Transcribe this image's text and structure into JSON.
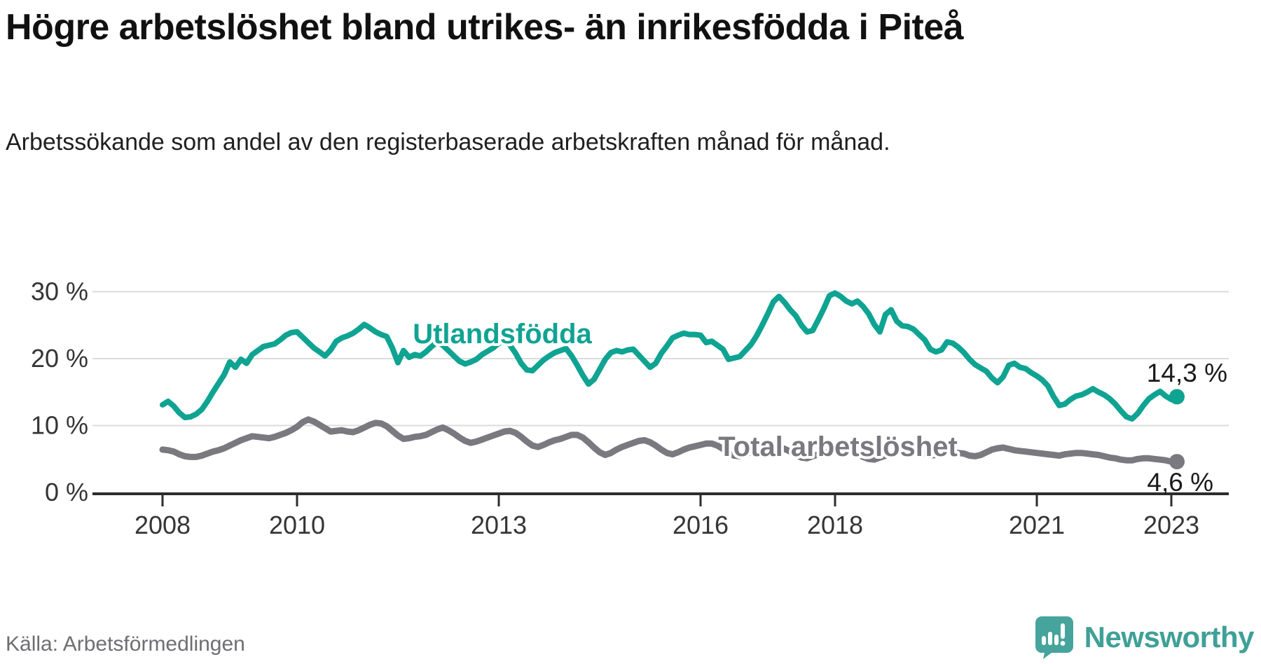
{
  "header": {
    "title": "Högre arbetslöshet bland utrikes- än inrikesfödda i Piteå",
    "subtitle": "Arbetssökande som andel av den registerbaserade arbetskraften månad för månad."
  },
  "footer": {
    "source": "Källa: Arbetsförmedlingen",
    "brand": "Newsworthy",
    "brand_color": "#3fa096",
    "logo_bubble_color": "#46a49c"
  },
  "chart_data": {
    "type": "line",
    "title": "Högre arbetslöshet bland utrikes- än inrikesfödda i Piteå",
    "x_unit": "month",
    "x_start_year": 2008,
    "x_end": "2023-02",
    "ylim": [
      0,
      31
    ],
    "grid": true,
    "legend": "inline-labels",
    "y_ticks": [
      {
        "value": 0,
        "label": "0 %"
      },
      {
        "value": 10,
        "label": "10 %"
      },
      {
        "value": 20,
        "label": "20 %"
      },
      {
        "value": 30,
        "label": "30 %"
      }
    ],
    "x_ticks": [
      {
        "year": 2008,
        "label": "2008"
      },
      {
        "year": 2010,
        "label": "2010"
      },
      {
        "year": 2013,
        "label": "2013"
      },
      {
        "year": 2016,
        "label": "2016"
      },
      {
        "year": 2018,
        "label": "2018"
      },
      {
        "year": 2021,
        "label": "2021"
      },
      {
        "year": 2023,
        "label": "2023"
      }
    ],
    "series": [
      {
        "name": "Utlandsfödda",
        "color": "#0fa392",
        "stroke_width": 8,
        "end_label": "14,3 %",
        "values": [
          13.1,
          13.6,
          12.9,
          11.9,
          11.2,
          11.3,
          11.7,
          12.4,
          13.6,
          15.0,
          16.3,
          17.6,
          19.5,
          18.7,
          19.9,
          19.3,
          20.6,
          21.2,
          21.8,
          22.0,
          22.2,
          22.8,
          23.5,
          23.9,
          24.0,
          23.2,
          22.4,
          21.6,
          21.0,
          20.4,
          21.3,
          22.6,
          23.1,
          23.4,
          23.8,
          24.4,
          25.1,
          24.6,
          24.0,
          23.6,
          23.3,
          21.6,
          19.4,
          21.2,
          20.2,
          20.6,
          20.4,
          21.0,
          21.8,
          22.5,
          22.0,
          21.2,
          20.4,
          19.6,
          19.2,
          19.5,
          19.9,
          20.6,
          21.1,
          21.6,
          22.3,
          22.8,
          22.0,
          20.8,
          19.3,
          18.3,
          18.2,
          19.0,
          19.8,
          20.4,
          20.9,
          21.2,
          21.5,
          20.4,
          19.0,
          17.5,
          16.2,
          16.9,
          18.4,
          19.9,
          20.9,
          21.2,
          21.0,
          21.3,
          21.4,
          20.5,
          19.6,
          18.7,
          19.3,
          20.8,
          21.9,
          23.1,
          23.5,
          23.8,
          23.6,
          23.6,
          23.5,
          22.4,
          22.6,
          22.0,
          21.4,
          19.9,
          20.1,
          20.3,
          21.2,
          22.1,
          23.4,
          25.0,
          26.7,
          28.5,
          29.3,
          28.4,
          27.3,
          26.4,
          25.0,
          24.0,
          24.2,
          25.8,
          27.5,
          29.4,
          29.8,
          29.3,
          28.6,
          28.2,
          28.6,
          27.8,
          26.7,
          25.1,
          24.0,
          26.6,
          27.3,
          25.6,
          24.9,
          24.8,
          24.4,
          23.6,
          22.8,
          21.4,
          21.0,
          21.3,
          22.5,
          22.3,
          21.7,
          20.9,
          19.9,
          19.1,
          18.6,
          18.1,
          17.1,
          16.4,
          17.3,
          19.0,
          19.3,
          18.7,
          18.5,
          17.9,
          17.4,
          16.8,
          15.9,
          14.3,
          13.0,
          13.2,
          13.9,
          14.4,
          14.6,
          15.0,
          15.5,
          15.0,
          14.6,
          14.0,
          13.2,
          12.2,
          11.3,
          11.0,
          11.8,
          13.0,
          14.0,
          14.6,
          15.1,
          14.4,
          13.9,
          14.3
        ]
      },
      {
        "name": "Total arbetslöshet",
        "color": "#7a797f",
        "stroke_width": 9,
        "end_label": "4,6 %",
        "values": [
          6.4,
          6.3,
          6.1,
          5.7,
          5.4,
          5.3,
          5.3,
          5.5,
          5.8,
          6.1,
          6.3,
          6.6,
          7.0,
          7.4,
          7.8,
          8.1,
          8.4,
          8.3,
          8.2,
          8.1,
          8.3,
          8.6,
          8.9,
          9.3,
          9.8,
          10.5,
          10.9,
          10.6,
          10.1,
          9.6,
          9.1,
          9.2,
          9.3,
          9.1,
          9.0,
          9.3,
          9.7,
          10.1,
          10.4,
          10.3,
          9.9,
          9.2,
          8.5,
          8.0,
          8.1,
          8.3,
          8.4,
          8.6,
          9.0,
          9.4,
          9.7,
          9.3,
          8.8,
          8.2,
          7.7,
          7.4,
          7.6,
          7.9,
          8.2,
          8.5,
          8.8,
          9.1,
          9.2,
          8.9,
          8.3,
          7.6,
          7.0,
          6.8,
          7.1,
          7.5,
          7.8,
          8.0,
          8.3,
          8.6,
          8.6,
          8.2,
          7.5,
          6.7,
          6.0,
          5.6,
          5.9,
          6.4,
          6.8,
          7.1,
          7.4,
          7.7,
          7.8,
          7.5,
          7.0,
          6.4,
          5.9,
          5.7,
          6.0,
          6.4,
          6.7,
          6.9,
          7.1,
          7.3,
          7.3,
          7.0,
          6.5,
          5.9,
          5.5,
          5.4,
          5.7,
          6.0,
          6.2,
          6.4,
          6.6,
          6.8,
          6.8,
          6.5,
          6.1,
          5.6,
          5.2,
          5.1,
          5.4,
          5.7,
          5.9,
          6.1,
          6.3,
          6.5,
          6.5,
          6.2,
          5.8,
          5.3,
          5.0,
          4.9,
          5.2,
          5.5,
          5.7,
          5.9,
          6.1,
          6.3,
          6.3,
          6.1,
          5.8,
          5.5,
          5.6,
          5.7,
          5.9,
          6.0,
          5.9,
          5.8,
          5.5,
          5.4,
          5.6,
          6.0,
          6.4,
          6.6,
          6.7,
          6.5,
          6.3,
          6.2,
          6.1,
          6.0,
          5.9,
          5.8,
          5.7,
          5.6,
          5.5,
          5.7,
          5.8,
          5.9,
          5.9,
          5.8,
          5.7,
          5.6,
          5.4,
          5.2,
          5.1,
          4.9,
          4.8,
          4.8,
          5.0,
          5.1,
          5.1,
          5.0,
          4.9,
          4.8,
          4.6,
          4.6
        ]
      }
    ],
    "colors": {
      "grid": "#dcdcdc",
      "axis": "#2d2d2d",
      "tick_label": "#353535",
      "end_label": "#1a1a1a"
    }
  }
}
